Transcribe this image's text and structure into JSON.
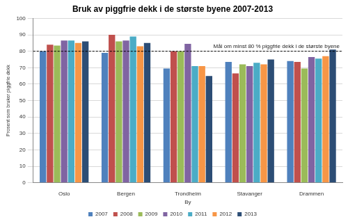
{
  "chart_data": {
    "type": "bar",
    "title": "Bruk av piggfrie dekk i de største byene 2007-2013",
    "x_label": "By",
    "y_label": "Prosent som bruker piggfrie dekk",
    "categories": [
      "Oslo",
      "Bergen",
      "Trondheim",
      "Stavanger",
      "Drammen"
    ],
    "series": [
      {
        "name": "2007",
        "color": "#4F81BD",
        "values": [
          80,
          79,
          69.5,
          73.5,
          74
        ]
      },
      {
        "name": "2008",
        "color": "#C0504D",
        "values": [
          84,
          90,
          80,
          66.5,
          73.5
        ]
      },
      {
        "name": "2009",
        "color": "#9BBB59",
        "values": [
          83.5,
          86,
          80,
          72,
          69.5
        ]
      },
      {
        "name": "2010",
        "color": "#8064A2",
        "values": [
          86.5,
          86.5,
          84.5,
          71,
          76.5
        ]
      },
      {
        "name": "2011",
        "color": "#4BACC6",
        "values": [
          86.5,
          89,
          71,
          73,
          75.5
        ]
      },
      {
        "name": "2012",
        "color": "#F79646",
        "values": [
          85,
          83,
          71,
          72,
          77
        ]
      },
      {
        "name": "2013",
        "color": "#2C4D75",
        "values": [
          86,
          85,
          65,
          75,
          81
        ]
      }
    ],
    "ylim": [
      0,
      100
    ],
    "yticks": [
      0,
      10,
      20,
      30,
      40,
      50,
      60,
      70,
      80,
      90,
      100
    ],
    "grid": true,
    "legend": "bottom",
    "annotations": [
      {
        "text": "Mål om minst 80 % piggfrie dekk i de største byene",
        "y": 80,
        "line_style": "dashed"
      }
    ]
  }
}
